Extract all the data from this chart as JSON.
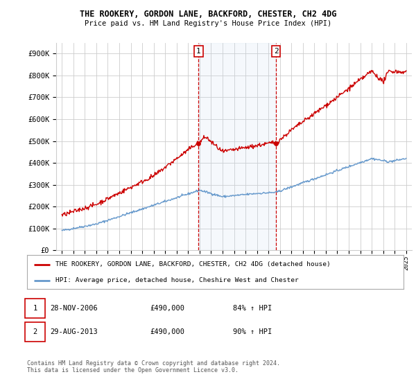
{
  "title": "THE ROOKERY, GORDON LANE, BACKFORD, CHESTER, CH2 4DG",
  "subtitle": "Price paid vs. HM Land Registry's House Price Index (HPI)",
  "ylabel_ticks": [
    "£0",
    "£100K",
    "£200K",
    "£300K",
    "£400K",
    "£500K",
    "£600K",
    "£700K",
    "£800K",
    "£900K"
  ],
  "ytick_values": [
    0,
    100000,
    200000,
    300000,
    400000,
    500000,
    600000,
    700000,
    800000,
    900000
  ],
  "ylim": [
    0,
    950000
  ],
  "xlim_start": 1994.5,
  "xlim_end": 2025.5,
  "xtick_years": [
    1995,
    1996,
    1997,
    1998,
    1999,
    2000,
    2001,
    2002,
    2003,
    2004,
    2005,
    2006,
    2007,
    2008,
    2009,
    2010,
    2011,
    2012,
    2013,
    2014,
    2015,
    2016,
    2017,
    2018,
    2019,
    2020,
    2021,
    2022,
    2023,
    2024,
    2025
  ],
  "sale1_x": 2006.91,
  "sale1_y": 490000,
  "sale2_x": 2013.66,
  "sale2_y": 490000,
  "sale1_label": "1",
  "sale2_label": "2",
  "red_line_color": "#cc0000",
  "blue_line_color": "#6699cc",
  "shade_color": "#ddeeff",
  "dashed_color": "#cc0000",
  "legend_line1": "THE ROOKERY, GORDON LANE, BACKFORD, CHESTER, CH2 4DG (detached house)",
  "legend_line2": "HPI: Average price, detached house, Cheshire West and Chester",
  "table_row1": [
    "1",
    "28-NOV-2006",
    "£490,000",
    "84% ↑ HPI"
  ],
  "table_row2": [
    "2",
    "29-AUG-2013",
    "£490,000",
    "90% ↑ HPI"
  ],
  "footer": "Contains HM Land Registry data © Crown copyright and database right 2024.\nThis data is licensed under the Open Government Licence v3.0.",
  "background_color": "#ffffff",
  "grid_color": "#cccccc"
}
